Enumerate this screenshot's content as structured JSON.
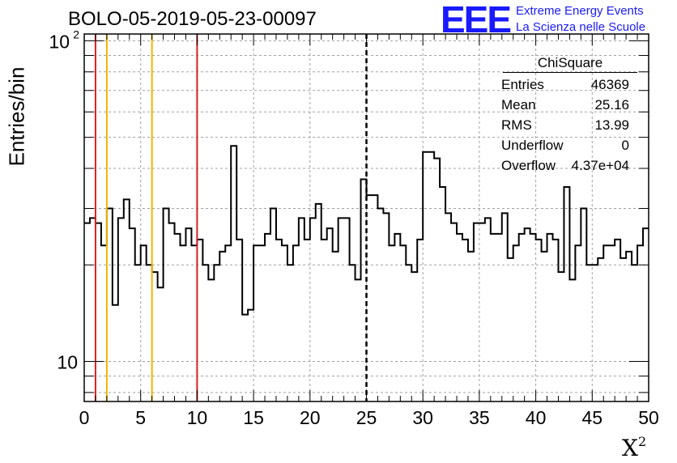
{
  "title": "BOLO-05-2019-05-23-00097",
  "logo": {
    "text": "EEE",
    "line1": "Extreme Energy Events",
    "line2": "La Scienza nelle Scuole",
    "color": "#1a1aff"
  },
  "stats_box": {
    "title": "ChiSquare",
    "rows": [
      {
        "label": "Entries",
        "value": "46369"
      },
      {
        "label": "Mean",
        "value": "25.16"
      },
      {
        "label": "RMS",
        "value": "13.99"
      },
      {
        "label": "Underflow",
        "value": "0"
      },
      {
        "label": "Overflow",
        "value": "4.37e+04"
      }
    ]
  },
  "chart_data": {
    "type": "histogram-step",
    "ylabel": "Entries/bin",
    "xlabel_base": "X",
    "xlabel_sup": "2",
    "xlim": [
      0,
      50
    ],
    "ylim": [
      7.5,
      105
    ],
    "y_log": true,
    "y_major_ticks": [
      {
        "value": 10,
        "label": "10"
      },
      {
        "value": 100,
        "label": "10",
        "sup": "2"
      }
    ],
    "x_ticks": [
      0,
      5,
      10,
      15,
      20,
      25,
      30,
      35,
      40,
      45,
      50
    ],
    "grid": true,
    "bin_width": 0.5,
    "values": [
      27,
      28,
      27,
      23,
      30,
      15,
      28,
      32,
      26,
      20,
      23,
      20,
      19,
      17,
      30,
      27,
      25,
      23,
      26,
      23,
      24,
      20,
      18,
      20,
      22,
      23,
      47,
      24,
      14,
      14.5,
      23,
      23,
      25,
      30,
      24,
      23,
      20,
      23,
      28,
      24,
      28,
      31,
      24,
      26,
      22,
      28,
      28,
      20,
      18,
      37,
      33,
      33,
      30,
      29,
      23,
      25,
      23,
      20,
      19,
      24,
      45,
      45,
      43,
      35,
      29,
      27,
      25,
      24,
      22,
      27,
      27,
      28,
      25,
      25,
      29,
      21,
      23,
      25,
      26,
      25,
      24,
      22,
      25,
      24,
      19,
      35,
      18,
      23,
      30,
      20,
      20,
      21,
      23,
      23,
      24,
      21,
      22,
      20,
      23,
      26
    ],
    "vlines": [
      {
        "x": 1,
        "color": "#d92020",
        "style": "solid"
      },
      {
        "x": 2,
        "color": "#f0b400",
        "style": "solid"
      },
      {
        "x": 6,
        "color": "#f0b400",
        "style": "solid"
      },
      {
        "x": 10,
        "color": "#d92020",
        "style": "solid"
      },
      {
        "x": 25,
        "color": "#000000",
        "style": "dashed"
      }
    ]
  }
}
